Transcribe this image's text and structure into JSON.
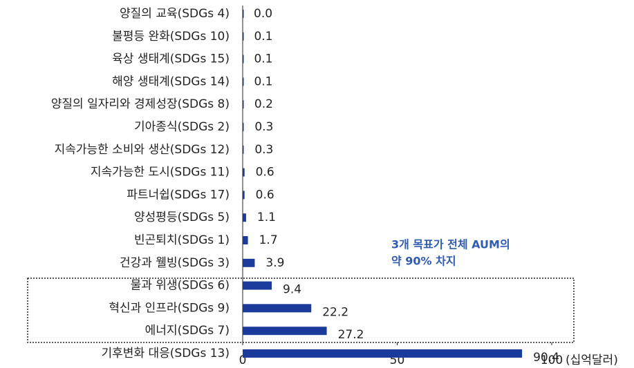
{
  "chart_data": {
    "type": "bar",
    "orientation": "horizontal",
    "categories": [
      "양질의 교육(SDGs 4)",
      "불평등 완화(SDGs 10)",
      "육상 생태계(SDGs 15)",
      "해양 생태계(SDGs 14)",
      "양질의 일자리와 경제성장(SDGs 8)",
      "기아종식(SDGs 2)",
      "지속가능한 소비와 생산(SDGs 12)",
      "지속가능한 도시(SDGs 11)",
      "파트너쉽(SDGs 17)",
      "양성평등(SDGs 5)",
      "빈곤퇴치(SDGs 1)",
      "건강과 웰빙(SDGs 3)",
      "물과 위생(SDGs 6)",
      "혁신과 인프라(SDGs 9)",
      "에너지(SDGs 7)",
      "기후변화 대응(SDGs 13)"
    ],
    "values": [
      0,
      0.1,
      0.1,
      0.1,
      0.2,
      0.3,
      0.3,
      0.6,
      0.6,
      1.1,
      1.7,
      3.9,
      9.4,
      22.2,
      27.2,
      90.4
    ],
    "value_labels": [
      "0.0",
      "0.1",
      "0.1",
      "0.1",
      "0.2",
      "0.3",
      "0.3",
      "0.6",
      "0.6",
      "1.1",
      "1.7",
      "3.9",
      "9.4",
      "22.2",
      "27.2",
      "90.4"
    ],
    "color": "#1a3a9c",
    "xlim": [
      0,
      100
    ],
    "xticks": [
      0,
      50,
      100
    ],
    "x_label": "(십억달러)",
    "annotations": [
      "3개 목표가 전체 AUM의",
      "약 90% 차지"
    ]
  }
}
